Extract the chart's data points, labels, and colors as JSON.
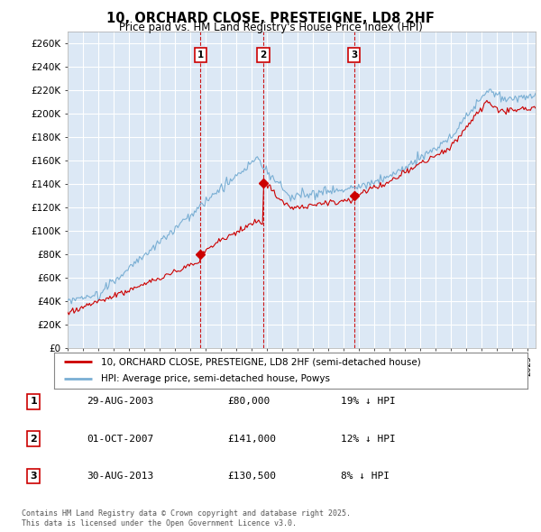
{
  "title": "10, ORCHARD CLOSE, PRESTEIGNE, LD8 2HF",
  "subtitle": "Price paid vs. HM Land Registry's House Price Index (HPI)",
  "ylim": [
    0,
    270000
  ],
  "xlim_start": 1995.0,
  "xlim_end": 2025.5,
  "plot_bg": "#dce8f5",
  "grid_color": "#ffffff",
  "sale_line_color": "#cc0000",
  "hpi_line_color": "#7aafd4",
  "vline_color": "#cc0000",
  "purchases": [
    {
      "num": 1,
      "date_dec": 2003.66,
      "price": 80000
    },
    {
      "num": 2,
      "date_dec": 2007.75,
      "price": 141000
    },
    {
      "num": 3,
      "date_dec": 2013.66,
      "price": 130500
    }
  ],
  "legend_sale_label": "10, ORCHARD CLOSE, PRESTEIGNE, LD8 2HF (semi-detached house)",
  "legend_hpi_label": "HPI: Average price, semi-detached house, Powys",
  "footnote": "Contains HM Land Registry data © Crown copyright and database right 2025.\nThis data is licensed under the Open Government Licence v3.0.",
  "table_rows": [
    [
      "1",
      "29-AUG-2003",
      "£80,000",
      "19% ↓ HPI"
    ],
    [
      "2",
      "01-OCT-2007",
      "£141,000",
      "12% ↓ HPI"
    ],
    [
      "3",
      "30-AUG-2013",
      "£130,500",
      "8% ↓ HPI"
    ]
  ]
}
